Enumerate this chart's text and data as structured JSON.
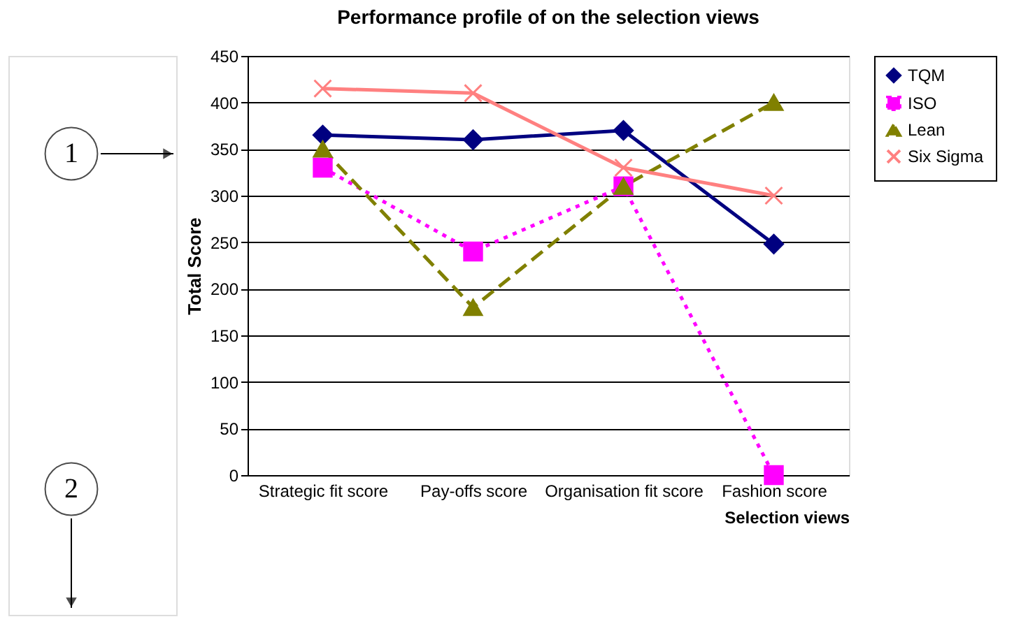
{
  "chart_data": {
    "type": "line",
    "title": "Performance profile of on the selection views",
    "xlabel": "Selection views",
    "ylabel": "Total Score",
    "categories": [
      "Strategic fit score",
      "Pay-offs score",
      "Organisation fit score",
      "Fashion score"
    ],
    "series": [
      {
        "name": "TQM",
        "color": "#000080",
        "values": [
          365,
          360,
          370,
          248
        ],
        "marker": "diamond",
        "line_style": "solid"
      },
      {
        "name": "ISO",
        "color": "#ff00ff",
        "values": [
          330,
          240,
          310,
          0
        ],
        "marker": "square",
        "line_style": "dotted"
      },
      {
        "name": "Lean",
        "color": "#808000",
        "values": [
          350,
          180,
          310,
          400
        ],
        "marker": "triangle",
        "line_style": "dashed"
      },
      {
        "name": "Six Sigma",
        "color": "#ff8080",
        "values": [
          415,
          410,
          330,
          300
        ],
        "marker": "cross",
        "line_style": "solid"
      }
    ],
    "ylim": [
      0,
      450
    ],
    "yticks": [
      0,
      50,
      100,
      150,
      200,
      250,
      300,
      350,
      400,
      450
    ],
    "grid": "y",
    "legend": "right",
    "annotations": [
      "1",
      "2"
    ]
  }
}
